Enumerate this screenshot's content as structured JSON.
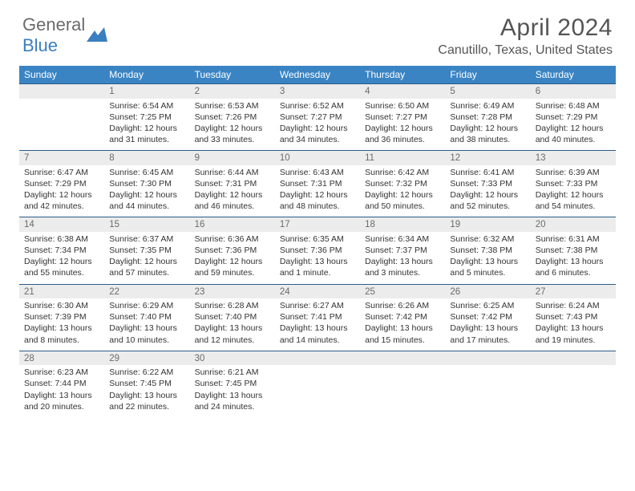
{
  "logo": {
    "general": "General",
    "blue": "Blue"
  },
  "title": "April 2024",
  "location": "Canutillo, Texas, United States",
  "colors": {
    "header_bg": "#3a84c4",
    "header_text": "#ffffff",
    "daynum_bg": "#ececec",
    "daynum_text": "#6b6b6b",
    "border": "#2d5b87",
    "body_text": "#333333",
    "title_text": "#555555",
    "logo_gray": "#6b6b6b",
    "logo_blue": "#3a7fbf"
  },
  "dayNames": [
    "Sunday",
    "Monday",
    "Tuesday",
    "Wednesday",
    "Thursday",
    "Friday",
    "Saturday"
  ],
  "weeks": [
    {
      "nums": [
        "",
        "1",
        "2",
        "3",
        "4",
        "5",
        "6"
      ],
      "cells": [
        "",
        "Sunrise: 6:54 AM\nSunset: 7:25 PM\nDaylight: 12 hours and 31 minutes.",
        "Sunrise: 6:53 AM\nSunset: 7:26 PM\nDaylight: 12 hours and 33 minutes.",
        "Sunrise: 6:52 AM\nSunset: 7:27 PM\nDaylight: 12 hours and 34 minutes.",
        "Sunrise: 6:50 AM\nSunset: 7:27 PM\nDaylight: 12 hours and 36 minutes.",
        "Sunrise: 6:49 AM\nSunset: 7:28 PM\nDaylight: 12 hours and 38 minutes.",
        "Sunrise: 6:48 AM\nSunset: 7:29 PM\nDaylight: 12 hours and 40 minutes."
      ]
    },
    {
      "nums": [
        "7",
        "8",
        "9",
        "10",
        "11",
        "12",
        "13"
      ],
      "cells": [
        "Sunrise: 6:47 AM\nSunset: 7:29 PM\nDaylight: 12 hours and 42 minutes.",
        "Sunrise: 6:45 AM\nSunset: 7:30 PM\nDaylight: 12 hours and 44 minutes.",
        "Sunrise: 6:44 AM\nSunset: 7:31 PM\nDaylight: 12 hours and 46 minutes.",
        "Sunrise: 6:43 AM\nSunset: 7:31 PM\nDaylight: 12 hours and 48 minutes.",
        "Sunrise: 6:42 AM\nSunset: 7:32 PM\nDaylight: 12 hours and 50 minutes.",
        "Sunrise: 6:41 AM\nSunset: 7:33 PM\nDaylight: 12 hours and 52 minutes.",
        "Sunrise: 6:39 AM\nSunset: 7:33 PM\nDaylight: 12 hours and 54 minutes."
      ]
    },
    {
      "nums": [
        "14",
        "15",
        "16",
        "17",
        "18",
        "19",
        "20"
      ],
      "cells": [
        "Sunrise: 6:38 AM\nSunset: 7:34 PM\nDaylight: 12 hours and 55 minutes.",
        "Sunrise: 6:37 AM\nSunset: 7:35 PM\nDaylight: 12 hours and 57 minutes.",
        "Sunrise: 6:36 AM\nSunset: 7:36 PM\nDaylight: 12 hours and 59 minutes.",
        "Sunrise: 6:35 AM\nSunset: 7:36 PM\nDaylight: 13 hours and 1 minute.",
        "Sunrise: 6:34 AM\nSunset: 7:37 PM\nDaylight: 13 hours and 3 minutes.",
        "Sunrise: 6:32 AM\nSunset: 7:38 PM\nDaylight: 13 hours and 5 minutes.",
        "Sunrise: 6:31 AM\nSunset: 7:38 PM\nDaylight: 13 hours and 6 minutes."
      ]
    },
    {
      "nums": [
        "21",
        "22",
        "23",
        "24",
        "25",
        "26",
        "27"
      ],
      "cells": [
        "Sunrise: 6:30 AM\nSunset: 7:39 PM\nDaylight: 13 hours and 8 minutes.",
        "Sunrise: 6:29 AM\nSunset: 7:40 PM\nDaylight: 13 hours and 10 minutes.",
        "Sunrise: 6:28 AM\nSunset: 7:40 PM\nDaylight: 13 hours and 12 minutes.",
        "Sunrise: 6:27 AM\nSunset: 7:41 PM\nDaylight: 13 hours and 14 minutes.",
        "Sunrise: 6:26 AM\nSunset: 7:42 PM\nDaylight: 13 hours and 15 minutes.",
        "Sunrise: 6:25 AM\nSunset: 7:42 PM\nDaylight: 13 hours and 17 minutes.",
        "Sunrise: 6:24 AM\nSunset: 7:43 PM\nDaylight: 13 hours and 19 minutes."
      ]
    },
    {
      "nums": [
        "28",
        "29",
        "30",
        "",
        "",
        "",
        ""
      ],
      "cells": [
        "Sunrise: 6:23 AM\nSunset: 7:44 PM\nDaylight: 13 hours and 20 minutes.",
        "Sunrise: 6:22 AM\nSunset: 7:45 PM\nDaylight: 13 hours and 22 minutes.",
        "Sunrise: 6:21 AM\nSunset: 7:45 PM\nDaylight: 13 hours and 24 minutes.",
        "",
        "",
        "",
        ""
      ]
    }
  ]
}
